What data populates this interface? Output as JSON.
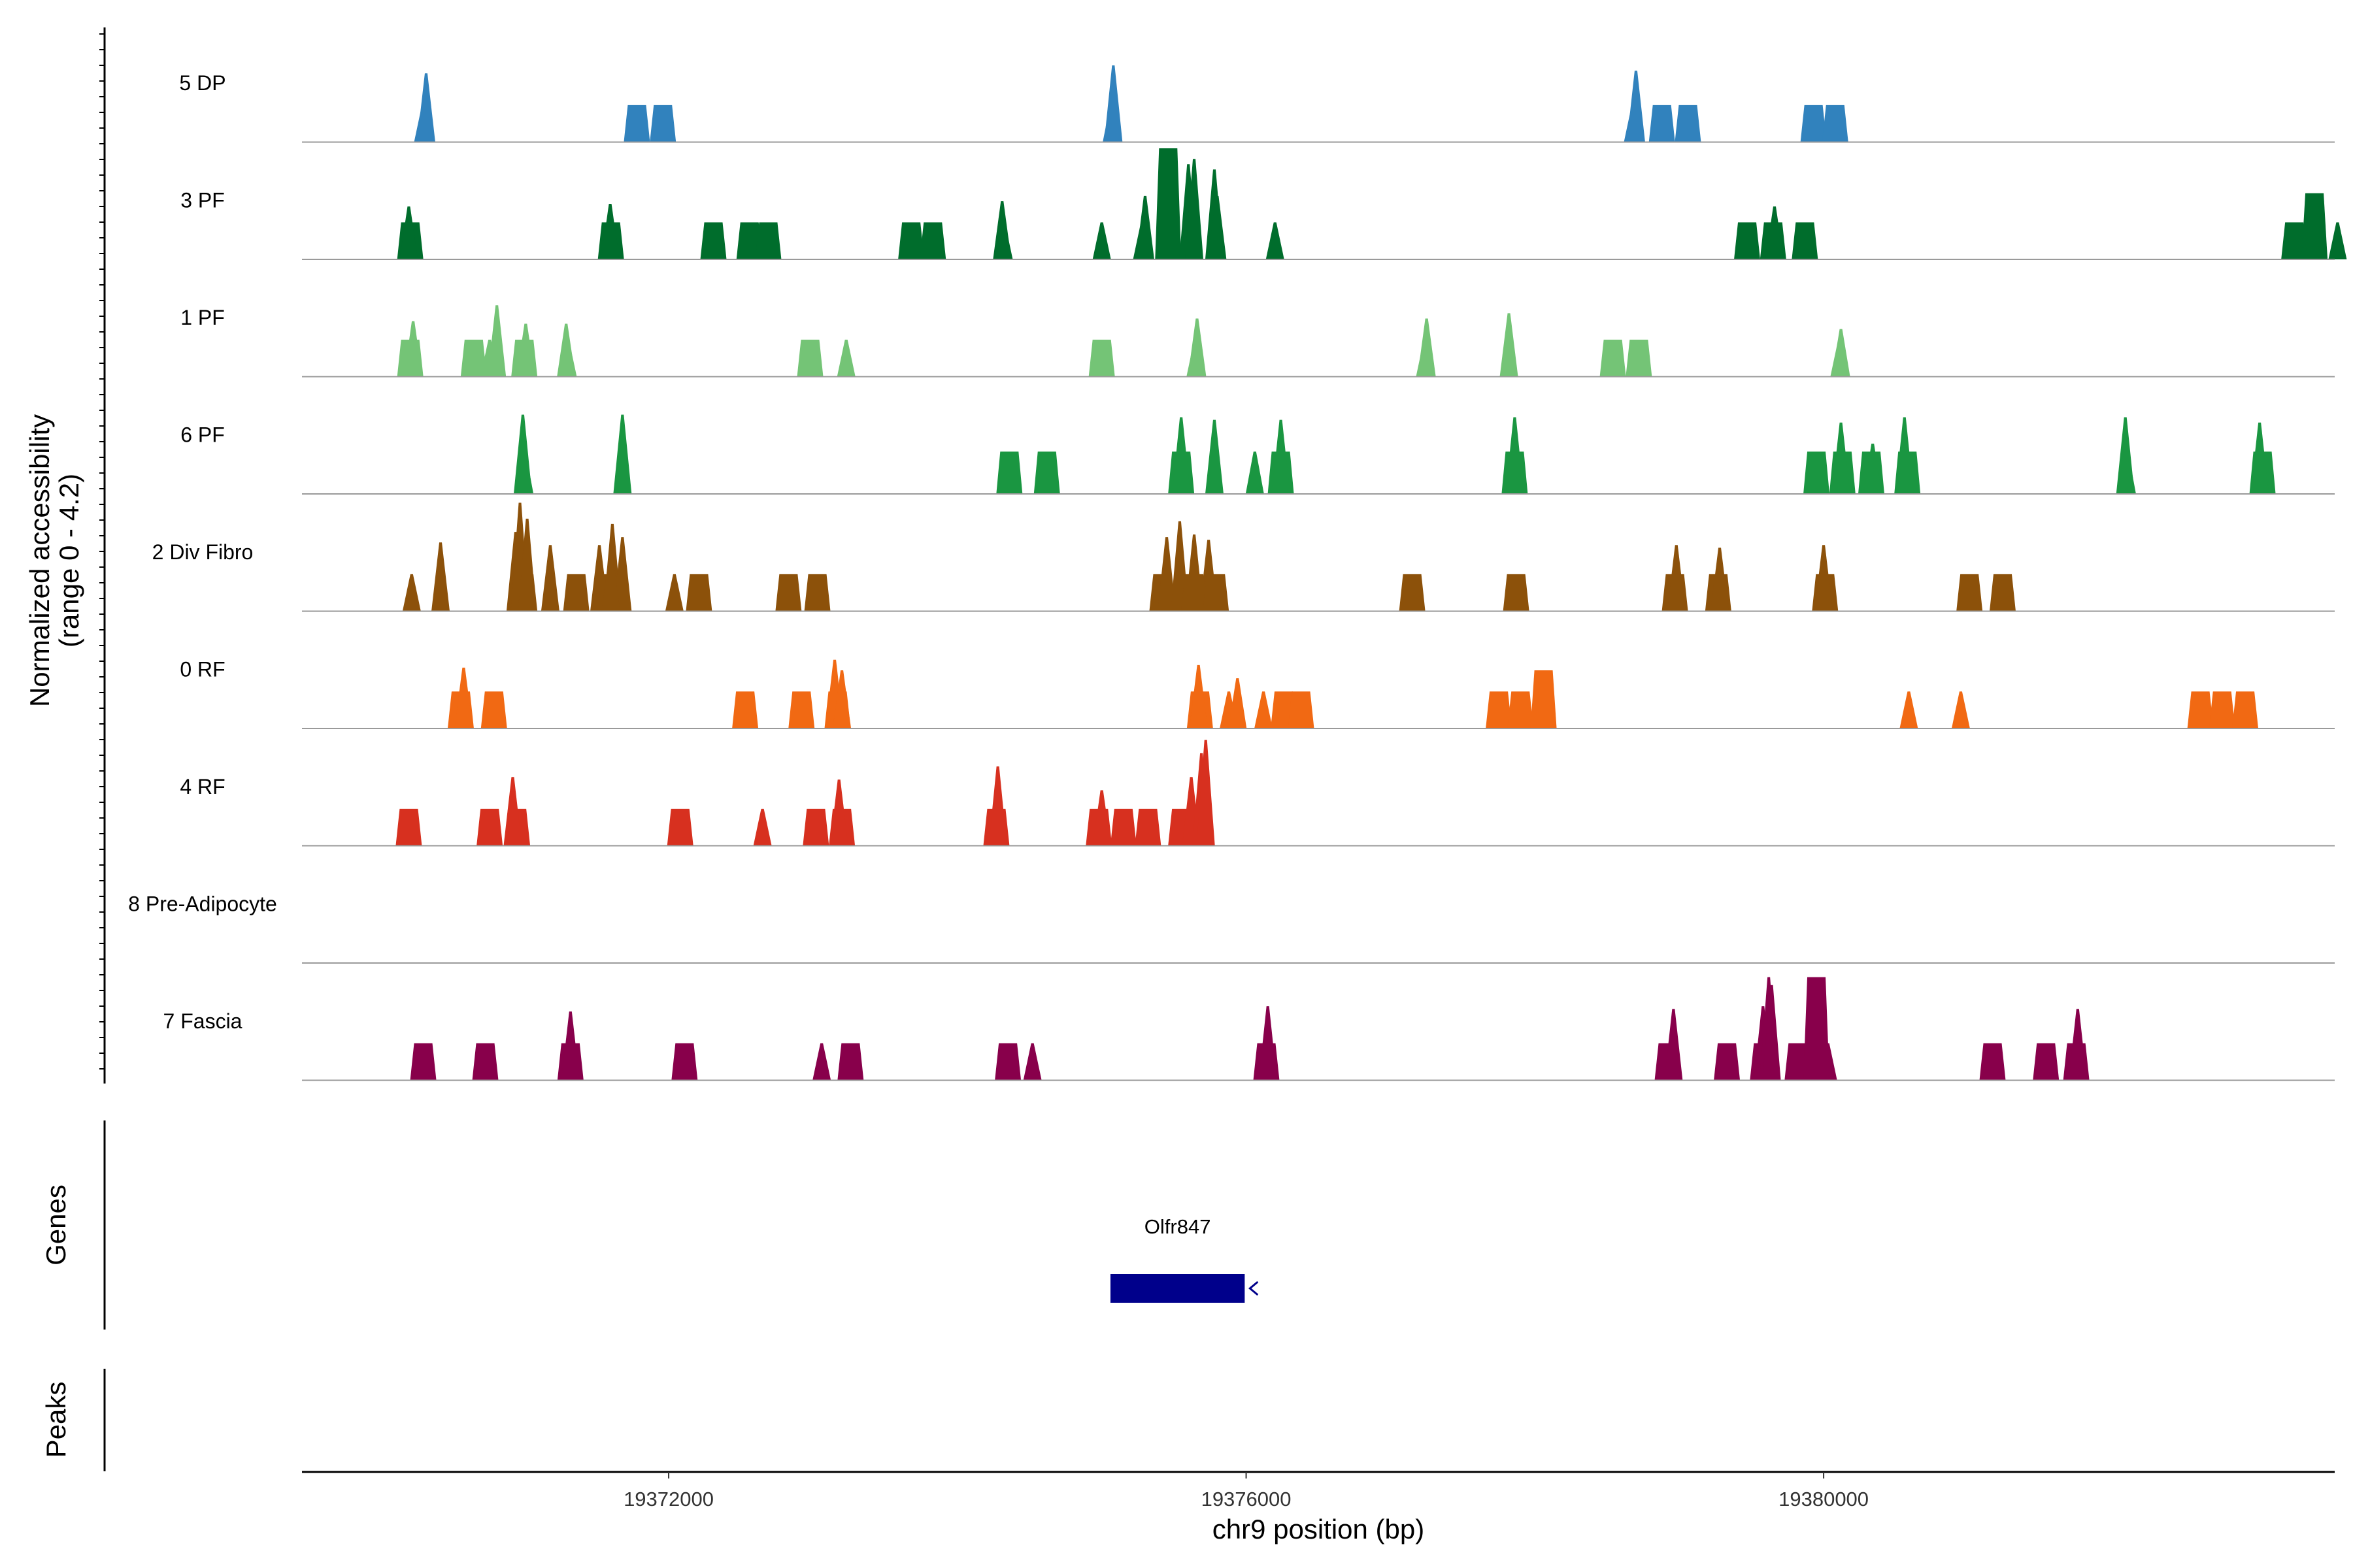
{
  "chart_data": {
    "type": "area",
    "title": "",
    "xlabel": "chr9 position (bp)",
    "ylabel_line1": "Normalized accessibility",
    "ylabel_line2": "(range 0 - 4.2)",
    "ylim": [
      0,
      4.2
    ],
    "xlim": [
      19369460,
      19383540
    ],
    "x_ticks": [
      19372000,
      19376000,
      19380000
    ],
    "x_tick_labels": [
      "19372000",
      "19376000",
      "19380000"
    ],
    "panel_labels": {
      "genes": "Genes",
      "peaks": "Peaks"
    },
    "genes": [
      {
        "name": "Olfr847",
        "start": 19375060,
        "end": 19375990,
        "strand": "-",
        "color": "#00008b"
      }
    ],
    "series": [
      {
        "name": "5 DP",
        "color": "#3182bd",
        "peaks": [
          [
            19370300,
            1.4,
            "s"
          ],
          [
            19370320,
            2.6,
            "s"
          ],
          [
            19371780,
            1.4,
            "f"
          ],
          [
            19371960,
            1.4,
            "f"
          ],
          [
            19375070,
            1.5,
            "s"
          ],
          [
            19375080,
            2.9,
            "s"
          ],
          [
            19378680,
            1.4,
            "s"
          ],
          [
            19378700,
            2.7,
            "s"
          ],
          [
            19378880,
            1.4,
            "f"
          ],
          [
            19379060,
            1.4,
            "f"
          ],
          [
            19379930,
            1.4,
            "f"
          ],
          [
            19380080,
            1.4,
            "f"
          ]
        ]
      },
      {
        "name": "3 PF",
        "color": "#006d2c",
        "peaks": [
          [
            19370210,
            1.4,
            "f"
          ],
          [
            19370200,
            2.0,
            "s"
          ],
          [
            19371600,
            1.4,
            "f"
          ],
          [
            19371595,
            2.1,
            "s"
          ],
          [
            19372310,
            1.4,
            "f"
          ],
          [
            19372560,
            1.4,
            "f"
          ],
          [
            19372690,
            1.4,
            "f"
          ],
          [
            19373680,
            1.4,
            "f"
          ],
          [
            19373830,
            1.4,
            "f"
          ],
          [
            19374320,
            1.4,
            "s"
          ],
          [
            19374310,
            2.2,
            "s"
          ],
          [
            19375000,
            1.4,
            "s"
          ],
          [
            19375280,
            1.4,
            "s"
          ],
          [
            19375300,
            2.4,
            "s"
          ],
          [
            19375460,
            4.2,
            "f"
          ],
          [
            19375600,
            3.6,
            "s"
          ],
          [
            19375640,
            3.8,
            "s"
          ],
          [
            19375780,
            3.4,
            "s"
          ],
          [
            19375800,
            2.4,
            "s"
          ],
          [
            19376200,
            1.4,
            "s"
          ],
          [
            19379650,
            1.4,
            "f"
          ],
          [
            19379470,
            1.4,
            "f"
          ],
          [
            19379660,
            2.0,
            "s"
          ],
          [
            19379870,
            1.4,
            "f"
          ],
          [
            19383260,
            1.4,
            "f"
          ],
          [
            19383400,
            2.5,
            "f"
          ],
          [
            19383560,
            1.4,
            "s"
          ]
        ]
      },
      {
        "name": "1 PF",
        "color": "#74c476",
        "peaks": [
          [
            19370210,
            1.4,
            "f"
          ],
          [
            19370230,
            2.1,
            "s"
          ],
          [
            19370650,
            1.4,
            "f"
          ],
          [
            19370760,
            1.4,
            "s"
          ],
          [
            19370810,
            2.7,
            "s"
          ],
          [
            19371000,
            1.4,
            "f"
          ],
          [
            19371010,
            2.0,
            "s"
          ],
          [
            19371300,
            1.4,
            "s"
          ],
          [
            19371290,
            2.0,
            "s"
          ],
          [
            19372980,
            1.4,
            "f"
          ],
          [
            19373230,
            1.4,
            "s"
          ],
          [
            19375000,
            1.4,
            "f"
          ],
          [
            19375650,
            1.4,
            "s"
          ],
          [
            19375660,
            2.2,
            "s"
          ],
          [
            19377240,
            1.4,
            "s"
          ],
          [
            19377250,
            2.2,
            "s"
          ],
          [
            19377820,
            1.4,
            "s"
          ],
          [
            19377820,
            2.4,
            "s"
          ],
          [
            19378540,
            1.4,
            "f"
          ],
          [
            19378720,
            1.4,
            "f"
          ],
          [
            19380110,
            1.4,
            "s"
          ],
          [
            19380120,
            1.8,
            "s"
          ]
        ]
      },
      {
        "name": "6 PF",
        "color": "#1a9641",
        "peaks": [
          [
            19371000,
            1.6,
            "s"
          ],
          [
            19370990,
            3.0,
            "s"
          ],
          [
            19371680,
            1.6,
            "s"
          ],
          [
            19371680,
            3.0,
            "s"
          ],
          [
            19374360,
            1.6,
            "f"
          ],
          [
            19374620,
            1.6,
            "f"
          ],
          [
            19375550,
            1.6,
            "f"
          ],
          [
            19375550,
            2.9,
            "s"
          ],
          [
            19375780,
            2.8,
            "s"
          ],
          [
            19376060,
            1.6,
            "s"
          ],
          [
            19376240,
            1.6,
            "f"
          ],
          [
            19376240,
            2.8,
            "s"
          ],
          [
            19377860,
            1.6,
            "f"
          ],
          [
            19377860,
            2.9,
            "s"
          ],
          [
            19379950,
            1.6,
            "f"
          ],
          [
            19380130,
            1.6,
            "f"
          ],
          [
            19380120,
            2.7,
            "s"
          ],
          [
            19380330,
            1.6,
            "f"
          ],
          [
            19380340,
            1.9,
            "s"
          ],
          [
            19380580,
            1.6,
            "f"
          ],
          [
            19380560,
            2.9,
            "s"
          ],
          [
            19382100,
            1.6,
            "s"
          ],
          [
            19382090,
            2.9,
            "s"
          ],
          [
            19383040,
            1.6,
            "f"
          ],
          [
            19383020,
            2.7,
            "s"
          ]
        ]
      },
      {
        "name": "2 Div Fibro",
        "color": "#8c510a",
        "peaks": [
          [
            19370220,
            1.4,
            "s"
          ],
          [
            19370420,
            1.4,
            "s"
          ],
          [
            19370420,
            2.6,
            "s"
          ],
          [
            19371000,
            1.4,
            "f"
          ],
          [
            19370940,
            3.0,
            "s"
          ],
          [
            19370970,
            4.1,
            "s"
          ],
          [
            19371020,
            3.5,
            "s"
          ],
          [
            19371180,
            1.4,
            "s"
          ],
          [
            19371180,
            2.5,
            "s"
          ],
          [
            19371360,
            1.4,
            "f"
          ],
          [
            19371580,
            1.4,
            "f"
          ],
          [
            19371520,
            2.5,
            "s"
          ],
          [
            19371610,
            3.3,
            "s"
          ],
          [
            19371680,
            2.8,
            "s"
          ],
          [
            19371600,
            2.3,
            "s"
          ],
          [
            19372040,
            1.4,
            "s"
          ],
          [
            19372210,
            1.4,
            "f"
          ],
          [
            19372830,
            1.4,
            "f"
          ],
          [
            19373030,
            1.4,
            "f"
          ],
          [
            19375420,
            1.4,
            "f"
          ],
          [
            19375450,
            2.8,
            "s"
          ],
          [
            19375540,
            3.4,
            "s"
          ],
          [
            19375640,
            2.9,
            "s"
          ],
          [
            19375740,
            2.7,
            "s"
          ],
          [
            19375640,
            1.4,
            "f"
          ],
          [
            19375790,
            1.4,
            "f"
          ],
          [
            19377150,
            1.4,
            "f"
          ],
          [
            19377870,
            1.4,
            "f"
          ],
          [
            19378970,
            1.4,
            "f"
          ],
          [
            19378980,
            2.5,
            "s"
          ],
          [
            19379270,
            1.4,
            "f"
          ],
          [
            19379280,
            2.4,
            "s"
          ],
          [
            19380010,
            1.4,
            "f"
          ],
          [
            19380000,
            2.5,
            "s"
          ],
          [
            19381010,
            1.4,
            "f"
          ],
          [
            19381240,
            1.4,
            "f"
          ]
        ]
      },
      {
        "name": "0 RF",
        "color": "#f16913",
        "peaks": [
          [
            19370560,
            1.4,
            "f"
          ],
          [
            19370580,
            2.3,
            "s"
          ],
          [
            19370790,
            1.4,
            "f"
          ],
          [
            19372530,
            1.4,
            "f"
          ],
          [
            19372920,
            1.4,
            "f"
          ],
          [
            19373170,
            1.4,
            "f"
          ],
          [
            19373150,
            2.6,
            "s"
          ],
          [
            19373200,
            2.2,
            "s"
          ],
          [
            19375680,
            1.4,
            "f"
          ],
          [
            19375670,
            2.4,
            "s"
          ],
          [
            19375880,
            1.4,
            "s"
          ],
          [
            19375940,
            1.9,
            "s"
          ],
          [
            19376120,
            1.4,
            "s"
          ],
          [
            19376260,
            1.4,
            "f"
          ],
          [
            19376380,
            1.4,
            "f"
          ],
          [
            19377750,
            1.4,
            "f"
          ],
          [
            19377900,
            1.4,
            "f"
          ],
          [
            19378060,
            2.2,
            "f"
          ],
          [
            19380590,
            1.4,
            "s"
          ],
          [
            19380950,
            1.4,
            "s"
          ],
          [
            19382610,
            1.4,
            "f"
          ],
          [
            19382760,
            1.4,
            "f"
          ],
          [
            19382920,
            1.4,
            "f"
          ]
        ]
      },
      {
        "name": "4 RF",
        "color": "#d7301f",
        "peaks": [
          [
            19370200,
            1.4,
            "f"
          ],
          [
            19370760,
            1.4,
            "f"
          ],
          [
            19370950,
            1.4,
            "f"
          ],
          [
            19370920,
            2.6,
            "s"
          ],
          [
            19372080,
            1.4,
            "f"
          ],
          [
            19372650,
            1.4,
            "s"
          ],
          [
            19373020,
            1.4,
            "f"
          ],
          [
            19373200,
            1.4,
            "f"
          ],
          [
            19373180,
            2.5,
            "s"
          ],
          [
            19374270,
            1.4,
            "f"
          ],
          [
            19374280,
            3.0,
            "s"
          ],
          [
            19374980,
            1.4,
            "f"
          ],
          [
            19375000,
            2.1,
            "s"
          ],
          [
            19375150,
            1.4,
            "f"
          ],
          [
            19375320,
            1.4,
            "f"
          ],
          [
            19375550,
            1.4,
            "f"
          ],
          [
            19375620,
            2.6,
            "s"
          ],
          [
            19375690,
            3.5,
            "s"
          ],
          [
            19375720,
            4.0,
            "s"
          ]
        ]
      },
      {
        "name": "8 Pre-Adipocyte",
        "color": "#6a51a3",
        "peaks": []
      },
      {
        "name": "7 Fascia",
        "color": "#88004b",
        "peaks": [
          [
            19370300,
            1.4,
            "f"
          ],
          [
            19370730,
            1.4,
            "f"
          ],
          [
            19371320,
            1.4,
            "f"
          ],
          [
            19371320,
            2.6,
            "s"
          ],
          [
            19372110,
            1.4,
            "f"
          ],
          [
            19373060,
            1.4,
            "s"
          ],
          [
            19373260,
            1.4,
            "f"
          ],
          [
            19374350,
            1.4,
            "f"
          ],
          [
            19374520,
            1.4,
            "s"
          ],
          [
            19376140,
            1.4,
            "f"
          ],
          [
            19376150,
            2.8,
            "s"
          ],
          [
            19378920,
            1.4,
            "f"
          ],
          [
            19378960,
            2.7,
            "s"
          ],
          [
            19379330,
            1.4,
            "f"
          ],
          [
            19379580,
            1.4,
            "f"
          ],
          [
            19379580,
            2.8,
            "s"
          ],
          [
            19379620,
            3.9,
            "s"
          ],
          [
            19379640,
            3.6,
            "s"
          ],
          [
            19379820,
            1.4,
            "f"
          ],
          [
            19380030,
            1.4,
            "s"
          ],
          [
            19379950,
            3.9,
            "f"
          ],
          [
            19381170,
            1.4,
            "f"
          ],
          [
            19381540,
            1.4,
            "f"
          ],
          [
            19381750,
            1.4,
            "f"
          ],
          [
            19381760,
            2.7,
            "s"
          ]
        ]
      }
    ]
  }
}
